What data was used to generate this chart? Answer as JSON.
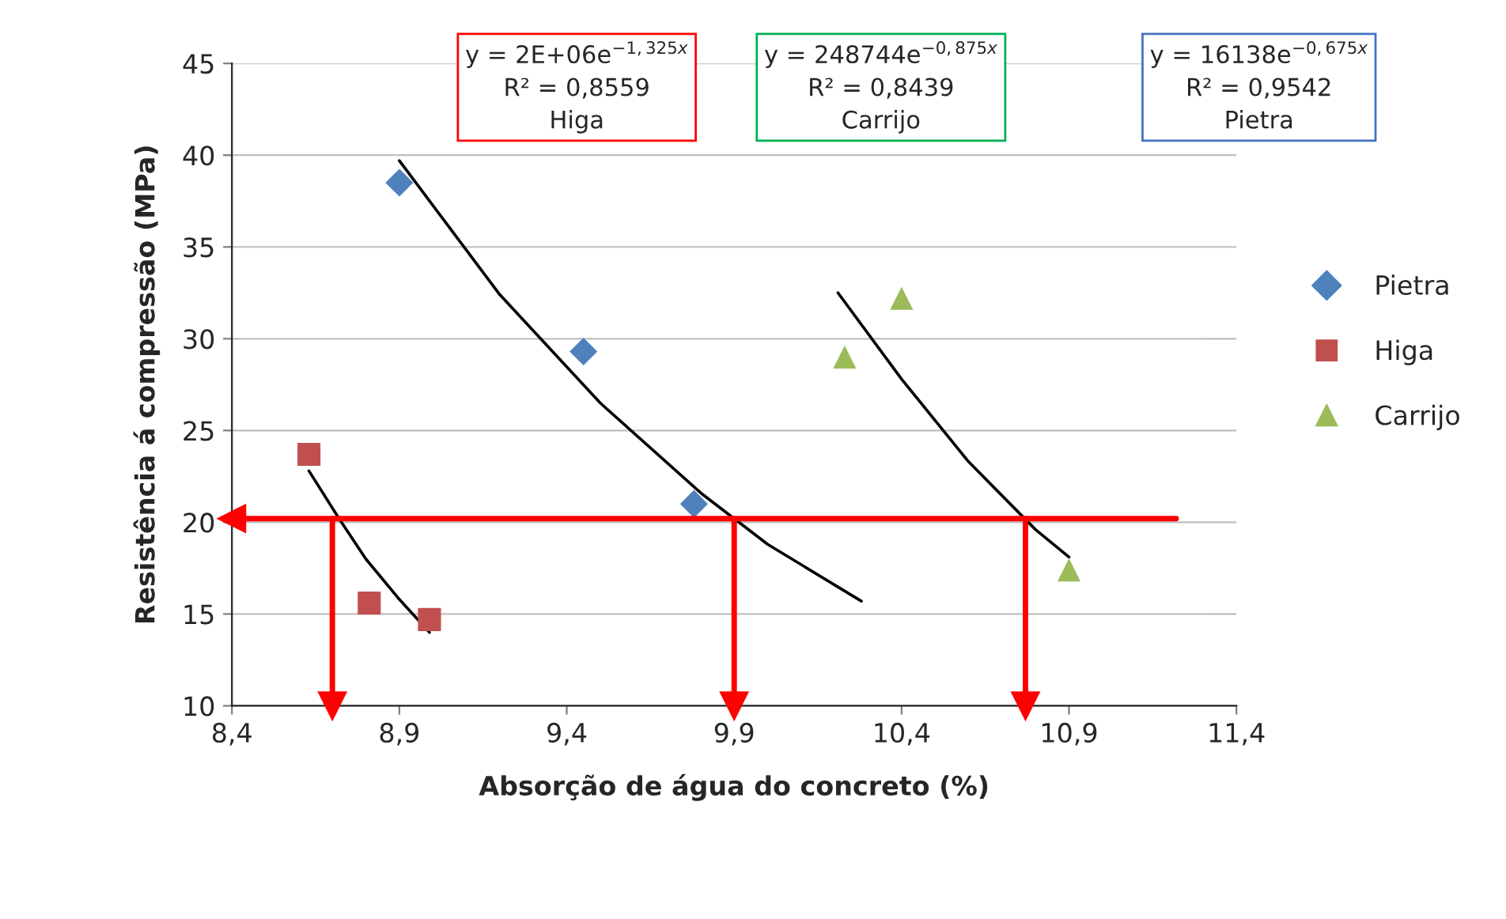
{
  "chart_data": {
    "type": "scatter",
    "xlabel": "Absorção de água do concreto (%)",
    "ylabel": "Resistência á compressão (MPa)",
    "xlim": [
      8.4,
      11.4
    ],
    "ylim": [
      10,
      45
    ],
    "xticks": [
      {
        "value": 8.4,
        "label": "8,4"
      },
      {
        "value": 8.9,
        "label": "8,9"
      },
      {
        "value": 9.4,
        "label": "9,4"
      },
      {
        "value": 9.9,
        "label": "9,9"
      },
      {
        "value": 10.4,
        "label": "10,4"
      },
      {
        "value": 10.9,
        "label": "10,9"
      },
      {
        "value": 11.4,
        "label": "11,4"
      }
    ],
    "yticks": [
      10,
      15,
      20,
      25,
      30,
      35,
      40,
      45
    ],
    "grid": "y",
    "legend": "right",
    "series": [
      {
        "name": "Pietra",
        "marker": "diamond",
        "color": "#4f81bd",
        "x": [
          8.9,
          9.45,
          9.78
        ],
        "values": [
          38.5,
          29.3,
          21.0
        ]
      },
      {
        "name": "Higa",
        "marker": "square",
        "color": "#c0504d",
        "x": [
          8.63,
          8.81,
          8.99
        ],
        "values": [
          23.7,
          15.6,
          14.7
        ]
      },
      {
        "name": "Carrijo",
        "marker": "triangle",
        "color": "#9bbb59",
        "x": [
          10.23,
          10.4,
          10.9
        ],
        "values": [
          29.0,
          32.2,
          17.4
        ]
      },
      {
        "type": "line",
        "color": "#000000",
        "x": [
          8.9,
          9.2,
          9.5,
          9.8,
          10.0,
          10.28
        ],
        "values": [
          39.7,
          32.4,
          26.5,
          21.6,
          18.8,
          15.7
        ]
      },
      {
        "type": "line",
        "color": "#000000",
        "x": [
          8.63,
          8.72,
          8.8,
          8.9,
          8.99
        ],
        "values": [
          22.8,
          20.2,
          18.0,
          15.8,
          14.0
        ]
      },
      {
        "type": "line",
        "color": "#000000",
        "x": [
          10.21,
          10.4,
          10.6,
          10.8,
          10.9
        ],
        "values": [
          32.5,
          27.8,
          23.3,
          19.6,
          18.1
        ]
      }
    ],
    "ref_lines": [
      {
        "axis": "y",
        "value": 20.2,
        "color": "#ff0000"
      },
      {
        "axis": "x",
        "value": 8.7,
        "color": "#ff0000"
      },
      {
        "axis": "x",
        "value": 9.9,
        "color": "#ff0000"
      },
      {
        "axis": "x",
        "value": 10.77,
        "color": "#ff0000"
      }
    ],
    "annotations": [
      "y = 2E+06e$^{−1,325x}$\nR² = 0,8559\nHiga",
      "y = 248744e$^{−0,875x}$\nR² = 0,8439\nCarrijo",
      "y = 16138e$^{−0,675x}$\nR² = 0,9542\nPietra"
    ]
  }
}
